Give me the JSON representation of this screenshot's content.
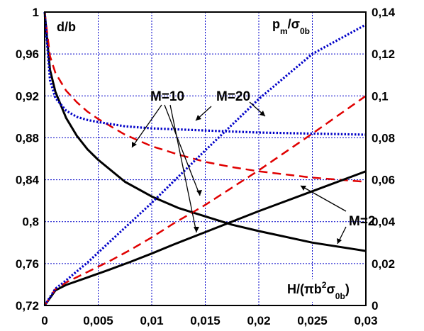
{
  "chart_data": {
    "type": "line",
    "title": "",
    "x_ticks": [
      "0",
      "0,005",
      "0,01",
      "0,015",
      "0,02",
      "0,025",
      "0,03"
    ],
    "y_left_ticks": [
      "0,72",
      "0,76",
      "0,8",
      "0,84",
      "0,88",
      "0,92",
      "0,96",
      "1"
    ],
    "y_right_ticks": [
      "0",
      "0,02",
      "0,04",
      "0,06",
      "0,08",
      "0,1",
      "0,12",
      "0,14"
    ],
    "xlim": [
      0,
      0.03
    ],
    "ylim_left": [
      0.72,
      1.0
    ],
    "ylim_right": [
      0,
      0.14
    ],
    "grid": true,
    "labels": {
      "left_axis": "d/b",
      "right_axis": {
        "main": "p",
        "sub1": "m",
        "mid": "/σ",
        "sub2": "0b"
      },
      "x_axis": {
        "a": "H/(πb",
        "sup": "2",
        "b": "σ",
        "sub": "0b",
        "c": ")"
      }
    },
    "annotations": [
      "M=10",
      "M=20",
      "M=2"
    ],
    "colors": {
      "M=2": "#000000",
      "M=10": "#e00000",
      "M=20": "#0000c8",
      "grid": "#0000c8"
    },
    "series": [
      {
        "name": "M=2",
        "axis": "left",
        "style": "solid",
        "x": [
          0,
          0.0005,
          0.001,
          0.002,
          0.003,
          0.004,
          0.005,
          0.0075,
          0.01,
          0.0125,
          0.015,
          0.0175,
          0.02,
          0.025,
          0.03
        ],
        "y": [
          1.0,
          0.945,
          0.924,
          0.899,
          0.882,
          0.869,
          0.859,
          0.838,
          0.824,
          0.813,
          0.805,
          0.797,
          0.791,
          0.78,
          0.772
        ]
      },
      {
        "name": "M=10",
        "axis": "left",
        "style": "dashed",
        "x": [
          0,
          0.0005,
          0.001,
          0.002,
          0.003,
          0.004,
          0.005,
          0.0075,
          0.01,
          0.0125,
          0.015,
          0.0175,
          0.02,
          0.025,
          0.03
        ],
        "y": [
          1.0,
          0.958,
          0.942,
          0.925,
          0.914,
          0.905,
          0.898,
          0.883,
          0.872,
          0.864,
          0.857,
          0.852,
          0.848,
          0.842,
          0.838
        ]
      },
      {
        "name": "M=20",
        "axis": "left",
        "style": "dotted",
        "x": [
          0,
          0.0005,
          0.001,
          0.002,
          0.003,
          0.004,
          0.005,
          0.0075,
          0.01,
          0.0125,
          0.015,
          0.0175,
          0.02,
          0.025,
          0.03
        ],
        "y": [
          1.0,
          0.935,
          0.918,
          0.906,
          0.9,
          0.897,
          0.895,
          0.891,
          0.889,
          0.888,
          0.887,
          0.886,
          0.885,
          0.884,
          0.883
        ]
      },
      {
        "name": "M=2",
        "axis": "right",
        "style": "solid",
        "x": [
          0,
          0.001,
          0.002,
          0.004,
          0.006,
          0.008,
          0.01,
          0.012,
          0.015,
          0.02,
          0.025,
          0.03
        ],
        "y": [
          0,
          0.0072,
          0.0098,
          0.0134,
          0.017,
          0.0208,
          0.0248,
          0.029,
          0.035,
          0.045,
          0.0545,
          0.064
        ]
      },
      {
        "name": "M=10",
        "axis": "right",
        "style": "dashed",
        "x": [
          0,
          0.001,
          0.002,
          0.004,
          0.006,
          0.008,
          0.01,
          0.012,
          0.015,
          0.02,
          0.025,
          0.03
        ],
        "y": [
          0,
          0.0078,
          0.011,
          0.016,
          0.021,
          0.0265,
          0.0325,
          0.039,
          0.048,
          0.0645,
          0.082,
          0.1
        ]
      },
      {
        "name": "M=20",
        "axis": "right",
        "style": "dotted",
        "x": [
          0,
          0.001,
          0.002,
          0.004,
          0.006,
          0.008,
          0.01,
          0.012,
          0.015,
          0.02,
          0.025,
          0.03
        ],
        "y": [
          0,
          0.008,
          0.012,
          0.0205,
          0.03,
          0.0395,
          0.049,
          0.059,
          0.074,
          0.0985,
          0.12,
          0.134
        ]
      }
    ]
  }
}
